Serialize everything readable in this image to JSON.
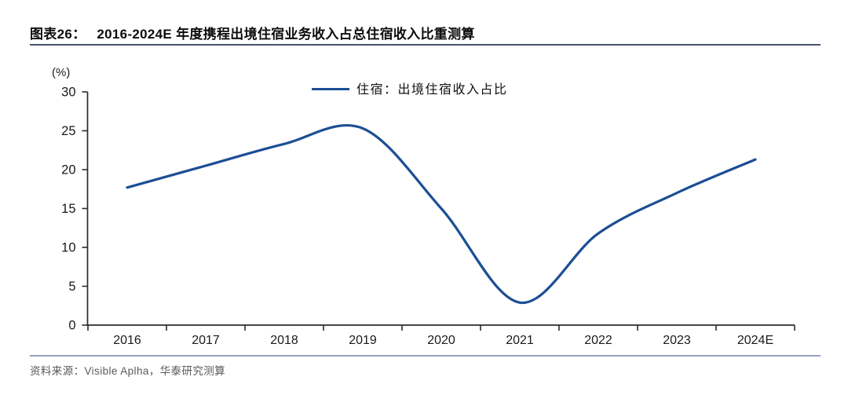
{
  "figure": {
    "label": "图表26：",
    "title": "2016-2024E 年度携程出境住宿业务收入占总住宿收入比重测算",
    "source": "资料来源：Visible Aplha，华泰研究测算"
  },
  "chart_data": {
    "type": "line",
    "title": "2016-2024E 年度携程出境住宿业务收入占总住宿收入比重测算",
    "unit_label": "(%)",
    "categories": [
      "2016",
      "2017",
      "2018",
      "2019",
      "2020",
      "2021",
      "2022",
      "2023",
      "2024E"
    ],
    "series": [
      {
        "name": "住宿：出境住宿收入占比",
        "color": "#1C4E94",
        "values": [
          17.7,
          20.5,
          23.3,
          25.3,
          15.0,
          2.9,
          11.8,
          17.0,
          21.3
        ]
      }
    ],
    "ylim": [
      0,
      30
    ],
    "ytick_step": 5,
    "grid": false,
    "legend_position": "top-center",
    "notes": "smooth curve; peaks ~25.7 between 2018 and 2019; trough ~2.9 at 2021"
  },
  "colors": {
    "line": "#1C4E94",
    "axis": "#2b2b2b",
    "tick_label": "#1a1a1a",
    "title_rule": "#44546A",
    "source_rule": "#95A3BE",
    "source_text": "#595959"
  }
}
